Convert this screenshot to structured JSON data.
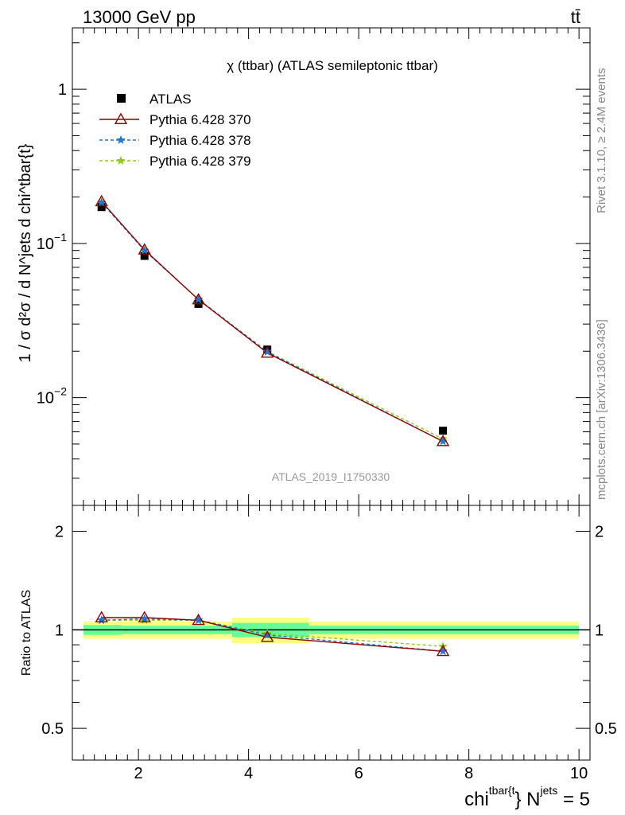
{
  "header": {
    "left": "13000 GeV pp",
    "right": "tt̄"
  },
  "side_labels": {
    "rivet": "Rivet 3.1.10, ≥ 2.4M events",
    "mcplots": "mcplots.cern.ch [arXiv:1306.3436]"
  },
  "chart_data": {
    "type": "line",
    "title": "χ (ttbar) (ATLAS semileptonic ttbar)",
    "analysis_id": "ATLAS_2019_I1750330",
    "xlabel": {
      "main": "chi",
      "sup1": "tbar{t",
      "mid": "} N",
      "sup2": "jets",
      "tail": " = 5"
    },
    "ylabel": "1 / σ d²σ / d N^jets d chi^tbar{t}",
    "ratio_ylabel": "Ratio to ATLAS",
    "x_range": [
      0.8,
      10.2
    ],
    "x_ticks": [
      2,
      4,
      6,
      8,
      10
    ],
    "y_scale": "log",
    "y_range": [
      0.002,
      2.5
    ],
    "y_ticks": [
      {
        "value": 1,
        "base": "1",
        "exp": ""
      },
      {
        "value": 0.1,
        "base": "10",
        "exp": "−1"
      },
      {
        "value": 0.01,
        "base": "10",
        "exp": "−2"
      }
    ],
    "ratio_y_range": [
      0.4,
      2.4
    ],
    "ratio_y_ticks": [
      {
        "value": 0.5,
        "label": "0.5"
      },
      {
        "value": 1,
        "label": "1"
      },
      {
        "value": 2,
        "label": "2"
      }
    ],
    "legend_position": "top-left",
    "data": {
      "name": "ATLAS",
      "x": [
        1.33,
        2.11,
        3.09,
        4.34,
        7.53
      ],
      "y": [
        0.172,
        0.083,
        0.0405,
        0.0205,
        0.0061
      ],
      "color": "#000000"
    },
    "uncertainty_bands": {
      "x_edges": [
        1.0,
        1.7,
        3.7,
        5.1,
        10.0
      ],
      "stat_total": [
        0.06,
        0.06,
        0.09,
        0.06
      ],
      "stat_inner": [
        0.035,
        0.03,
        0.05,
        0.03
      ],
      "outer_color": "#ffff80",
      "inner_color": "#66ff99"
    },
    "series": [
      {
        "name": "Pythia 6.428 370",
        "color": "#8b0000",
        "dash": "",
        "marker": "triangle",
        "y": [
          0.187,
          0.091,
          0.0432,
          0.0195,
          0.0052
        ],
        "ratio": [
          1.09,
          1.09,
          1.07,
          0.95,
          0.86
        ]
      },
      {
        "name": "Pythia 6.428 378",
        "color": "#1f77d4",
        "dash": "4,3",
        "marker": "star",
        "y": [
          0.184,
          0.09,
          0.0433,
          0.0198,
          0.0052
        ],
        "ratio": [
          1.07,
          1.08,
          1.07,
          0.965,
          0.86
        ]
      },
      {
        "name": "Pythia 6.428 379",
        "color": "#8fcc1a",
        "dash": "4,3",
        "marker": "star",
        "y": [
          0.185,
          0.09,
          0.0434,
          0.0199,
          0.0054
        ],
        "ratio": [
          1.07,
          1.07,
          1.07,
          0.975,
          0.89
        ]
      }
    ]
  }
}
